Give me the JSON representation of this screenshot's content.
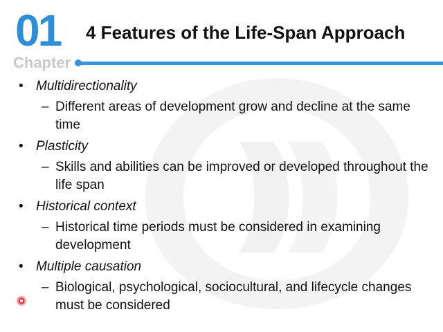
{
  "header": {
    "chapter_number": "01",
    "chapter_label": "Chapter",
    "title": "4 Features of the Life-Span Approach"
  },
  "colors": {
    "accent_blue": "#3b93db",
    "chapter_gray": "#c9c9c9",
    "text": "#111111",
    "pointer_red": "#e0262b"
  },
  "features": [
    {
      "bullet": "•",
      "label": "Multidirectionality",
      "dash": "–",
      "detail": "Different areas of development grow and decline at the same time"
    },
    {
      "bullet": "•",
      "label": "Plasticity",
      "dash": "–",
      "detail": "Skills and abilities can be improved or developed throughout the life span"
    },
    {
      "bullet": "•",
      "label": "Historical context",
      "dash": "–",
      "detail": "Historical time periods must be considered in examining development"
    },
    {
      "bullet": "•",
      "label": "Multiple causation",
      "dash": "–",
      "detail": "Biological, psychological, sociocultural, and lifecycle changes must be considered"
    }
  ],
  "icons": {
    "watermark": "publisher-logo-watermark-icon",
    "pointer": "laser-pointer-icon"
  }
}
